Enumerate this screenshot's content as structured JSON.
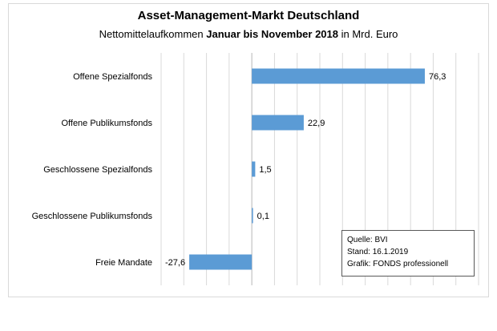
{
  "chart_data": {
    "type": "bar",
    "orientation": "horizontal",
    "title": "Asset-Management-Markt  Deutschland",
    "subtitle_parts": [
      {
        "text": "Nettomittelaufkommen ",
        "bold": false
      },
      {
        "text": "Januar bis November 2018",
        "bold": true
      },
      {
        "text": " in Mrd. Euro",
        "bold": false
      }
    ],
    "categories": [
      "Offene Spezialfonds",
      "Offene Publikumsfonds",
      "Geschlossene Spezialfonds",
      "Geschlossene Publikumsfonds",
      "Freie Mandate"
    ],
    "values": [
      76.3,
      22.9,
      1.5,
      0.1,
      -27.6
    ],
    "value_labels": [
      "76,3",
      "22,9",
      "1,5",
      "0,1",
      "-27,6"
    ],
    "xlim": [
      -40,
      100
    ],
    "xtick_step": 10,
    "grid": true,
    "bar_color": "#5b9bd5"
  },
  "source_box": {
    "line1": "Quelle: BVI",
    "line2": "Stand: 16.1.2019",
    "line3": "Grafik: FONDS professionell"
  }
}
